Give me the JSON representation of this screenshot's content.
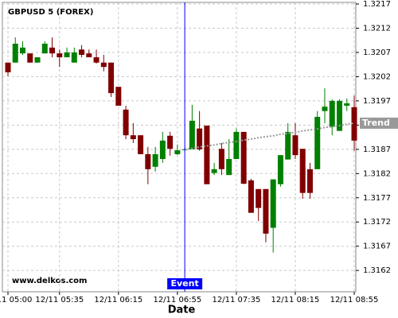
{
  "chart_data": {
    "type": "candlestick",
    "title": "GBPUSD 5 (FOREX)",
    "x_label": "Date",
    "watermark": "www.delkos.com",
    "categories": [
      "12/11 05:00",
      null,
      null,
      null,
      null,
      null,
      null,
      "12/11 05:35",
      null,
      null,
      null,
      null,
      null,
      null,
      null,
      "12/11 06:15",
      null,
      null,
      null,
      null,
      null,
      null,
      null,
      "12/11 06:55",
      null,
      null,
      null,
      null,
      null,
      null,
      null,
      "12/11 07:35",
      null,
      null,
      null,
      null,
      null,
      null,
      null,
      "12/11 08:15",
      null,
      null,
      null,
      null,
      null,
      null,
      null,
      "12/11 08:55"
    ],
    "open": [
      1.32049,
      1.32049,
      1.32068,
      1.32068,
      1.32049,
      1.32068,
      1.3208,
      1.32068,
      1.3206,
      1.32049,
      1.32076,
      1.32068,
      1.3206,
      1.32049,
      1.32049,
      1.31999,
      1.31952,
      1.31899,
      1.31899,
      1.3186,
      1.31834,
      1.3185,
      1.31898,
      1.3186,
      1.3187,
      1.3187,
      1.31913,
      1.31919,
      1.31821,
      1.31871,
      1.31817,
      1.3185,
      1.31906,
      1.31806,
      1.31788,
      1.31788,
      1.31708,
      1.31798,
      1.31849,
      1.31899,
      1.31871,
      1.31829,
      1.31829,
      1.31949,
      1.31916,
      1.31908,
      1.3196,
      1.31957
    ],
    "high": [
      1.32049,
      1.32101,
      1.32093,
      1.32068,
      1.3206,
      1.32093,
      1.32101,
      1.32076,
      1.3208,
      1.3208,
      1.32085,
      1.32076,
      1.32076,
      1.32065,
      1.32049,
      1.31999,
      1.3196,
      1.31924,
      1.31899,
      1.31875,
      1.31875,
      1.31906,
      1.31906,
      1.3188,
      1.31875,
      1.31962,
      1.31949,
      1.31919,
      1.31842,
      1.31883,
      1.31891,
      1.31913,
      1.31906,
      1.31809,
      1.31788,
      1.31788,
      1.31808,
      1.31858,
      1.31924,
      1.31924,
      1.31871,
      1.31842,
      1.31949,
      1.31996,
      1.31973,
      1.31973,
      1.31975,
      1.31981
    ],
    "low": [
      1.32021,
      1.32049,
      1.32065,
      1.32049,
      1.32049,
      1.32068,
      1.3206,
      1.3204,
      1.3206,
      1.32049,
      1.3206,
      1.3206,
      1.32047,
      1.32031,
      1.31978,
      1.3196,
      1.31891,
      1.31883,
      1.3186,
      1.31798,
      1.31824,
      1.31842,
      1.31857,
      1.31858,
      1.31867,
      1.3187,
      1.31867,
      1.31798,
      1.31817,
      1.31817,
      1.31817,
      1.3185,
      1.31798,
      1.31739,
      1.31722,
      1.31678,
      1.31657,
      1.31793,
      1.31849,
      1.3185,
      1.31768,
      1.31768,
      1.31829,
      1.31924,
      1.31899,
      1.31908,
      1.31949,
      1.31867
    ],
    "close": [
      1.32029,
      1.32088,
      1.3208,
      1.32049,
      1.3206,
      1.32088,
      1.32068,
      1.3206,
      1.3207,
      1.3207,
      1.32065,
      1.3206,
      1.32049,
      1.3204,
      1.31986,
      1.3196,
      1.31899,
      1.31891,
      1.3186,
      1.31829,
      1.3186,
      1.31888,
      1.31871,
      1.31868,
      1.3187,
      1.31929,
      1.3187,
      1.31798,
      1.31829,
      1.31829,
      1.3185,
      1.31906,
      1.31799,
      1.31739,
      1.31749,
      1.31696,
      1.31808,
      1.31858,
      1.31906,
      1.31858,
      1.3178,
      1.3178,
      1.31937,
      1.31958,
      1.3197,
      1.3197,
      1.31965,
      1.31888
    ],
    "up_color": "#008000",
    "down_color": "#800000",
    "trend": {
      "name": "Trend",
      "color": "#999999",
      "values": [
        null,
        null,
        null,
        null,
        null,
        null,
        null,
        null,
        null,
        null,
        null,
        null,
        null,
        null,
        null,
        null,
        null,
        null,
        null,
        null,
        null,
        null,
        null,
        null,
        1.3187,
        1.31872,
        1.31875,
        1.31877,
        1.31879,
        1.31882,
        1.31884,
        1.31886,
        1.31889,
        1.31891,
        1.31894,
        1.31896,
        1.31898,
        1.31901,
        1.31903,
        1.31905,
        1.31908,
        1.3191,
        1.31912,
        1.31915,
        1.31917,
        1.31919,
        1.31922,
        1.31924
      ]
    },
    "event": {
      "label": "Event",
      "index": 24,
      "color": "#0000ff"
    },
    "ylim": [
      1.31576,
      1.3217
    ],
    "yticks": [
      1.3162,
      1.3167,
      1.3172,
      1.3177,
      1.3182,
      1.3187,
      1.3192,
      1.3197,
      1.3202,
      1.3207,
      1.3212,
      1.3217
    ],
    "grid": true
  }
}
